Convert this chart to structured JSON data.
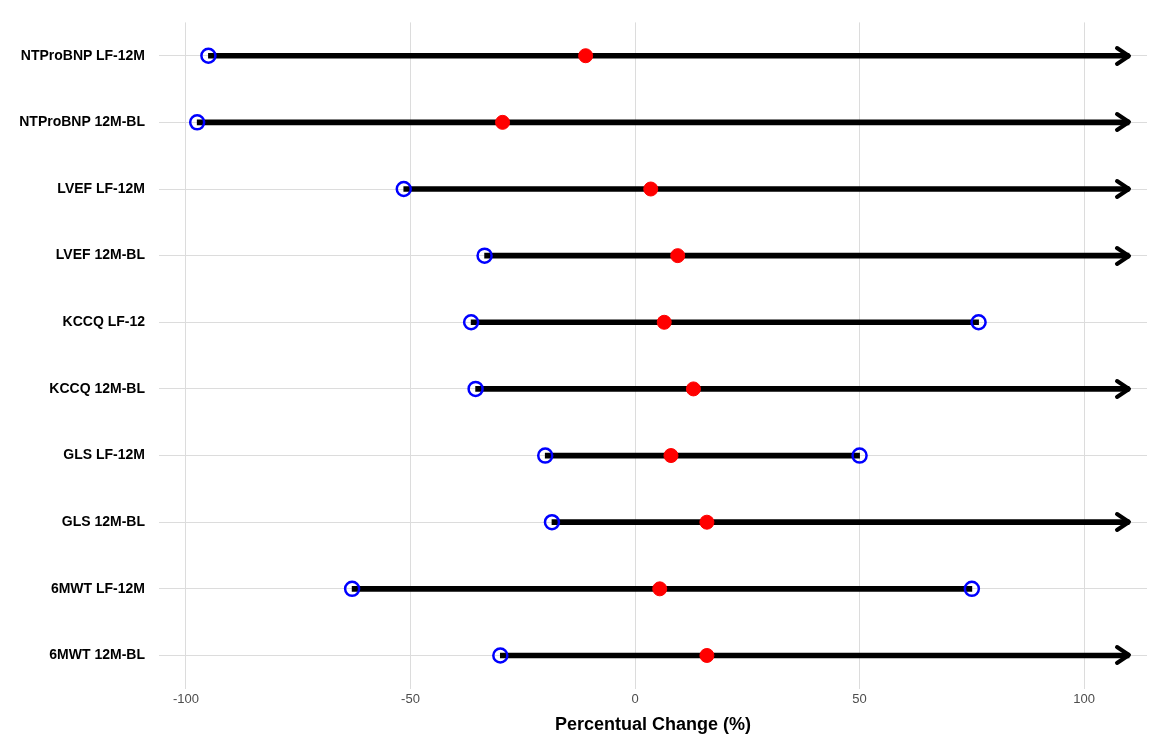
{
  "chart_data": {
    "type": "bar",
    "orientation": "horizontal",
    "xlabel": "Percentual Change (%)",
    "categories": [
      "NTProBNP LF-12M",
      "NTProBNP 12M-BL",
      "LVEF LF-12M",
      "LVEF 12M-BL",
      "KCCQ LF-12",
      "KCCQ 12M-BL",
      "GLS LF-12M",
      "GLS 12M-BL",
      "6MWT LF-12M",
      "6MWT 12M-BL"
    ],
    "xlim": [
      -106,
      114
    ],
    "xticks": [
      -100,
      -50,
      0,
      50,
      100
    ],
    "grid": true,
    "legend": false,
    "series": [
      {
        "type": "bar",
        "color": "#000000",
        "base": [
          -95,
          -97.5,
          -51.5,
          -33.5,
          -36.5,
          -35.5,
          -20,
          -18.5,
          -63,
          -30
        ],
        "values": [
          205,
          207.5,
          161.5,
          143.5,
          113,
          145.5,
          70,
          128.5,
          138,
          140
        ]
      },
      {
        "type": "scatter",
        "color": "#0000ff",
        "values": [
          -95,
          -97.5,
          -51.5,
          -33.5,
          -36.5,
          -35.5,
          -20,
          -18.5,
          -63,
          -30
        ]
      },
      {
        "type": "scatter",
        "color": "#0000ff",
        "values": [
          null,
          null,
          null,
          null,
          76.5,
          null,
          50,
          null,
          75,
          null
        ]
      },
      {
        "type": "scatter",
        "color": "#ff0000",
        "values": [
          -11,
          -29.5,
          3.5,
          9.5,
          6.5,
          13,
          8,
          16,
          5.5,
          16
        ]
      }
    ]
  }
}
